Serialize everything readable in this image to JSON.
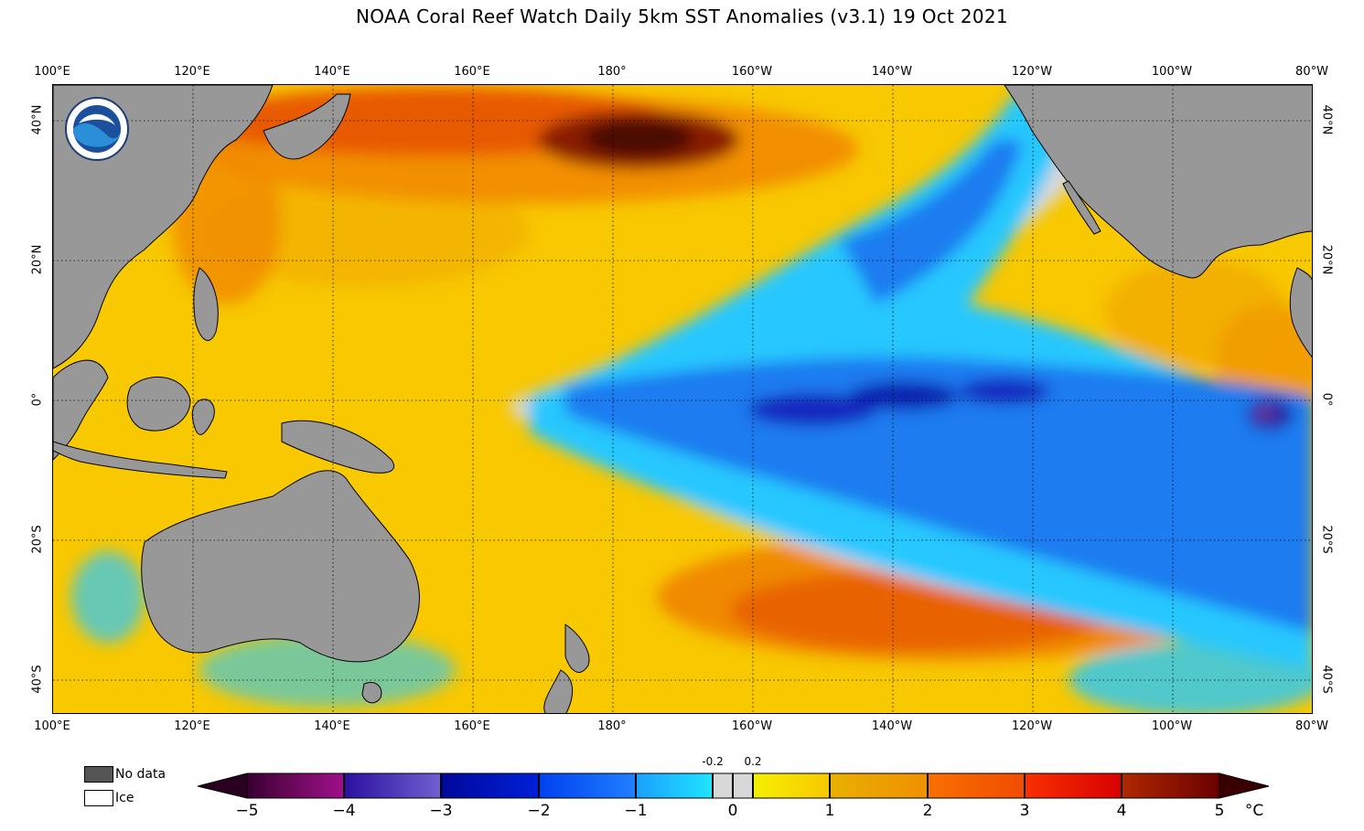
{
  "title": "NOAA Coral Reef Watch Daily 5km SST Anomalies  (v3.1)   19 Oct 2021",
  "lon_labels": [
    "100°E",
    "120°E",
    "140°E",
    "160°E",
    "180°",
    "160°W",
    "140°W",
    "120°W",
    "100°W",
    "80°W"
  ],
  "lat_labels": [
    "40°N",
    "20°N",
    "0°",
    "20°S",
    "40°S"
  ],
  "legend": {
    "no_data": "No data",
    "ice": "Ice"
  },
  "colorbar": {
    "ticks": [
      "−5",
      "−4",
      "−3",
      "−2",
      "−1",
      "0",
      "1",
      "2",
      "3",
      "4",
      "5"
    ],
    "small_ticks": [
      "-0.2",
      "0.2"
    ],
    "unit": "°C"
  },
  "colors": {
    "land": "#989898",
    "no_data": "#555555",
    "neutral": "#dadada",
    "warm": "#f5c400",
    "hot": "#f07a00",
    "cool_light": "#22c4ff",
    "cool": "#1e78f0",
    "cool_deep": "#1418b8"
  }
}
